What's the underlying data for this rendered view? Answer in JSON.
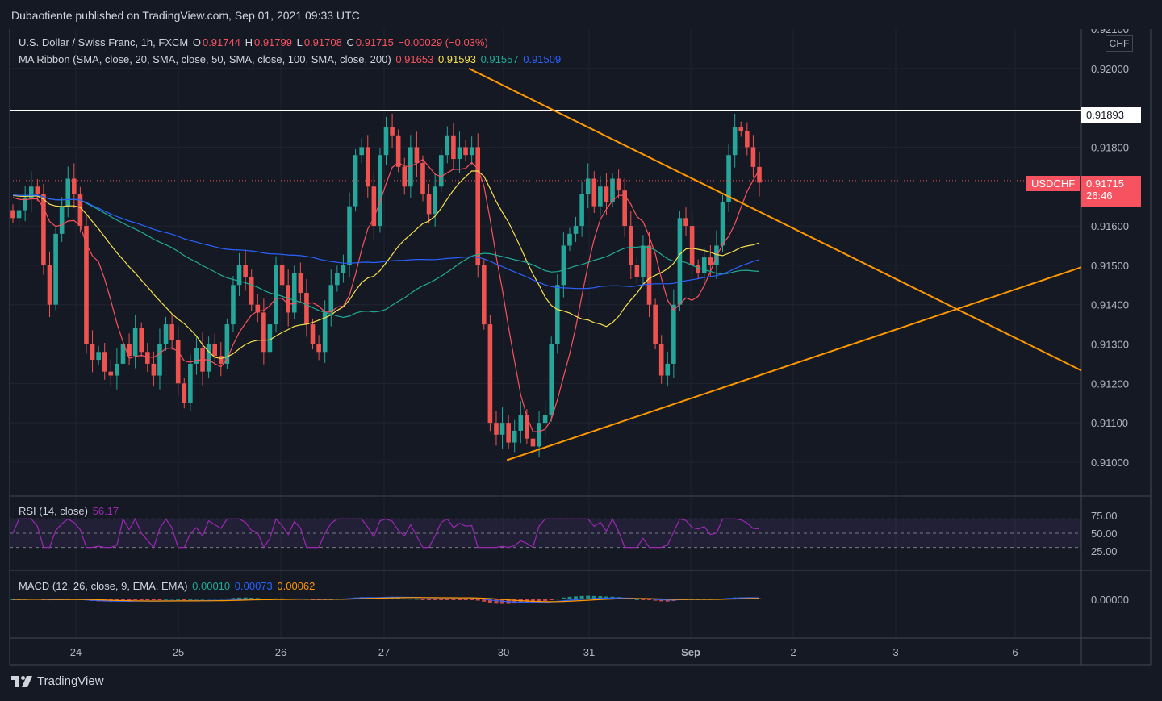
{
  "header": {
    "published": "Dubaotiente published on TradingView.com, Sep 01, 2021 09:33 UTC"
  },
  "legend": {
    "symbol": "U.S. Dollar / Swiss Franc, 1h, FXCM",
    "o_label": "O",
    "o_value": "0.91744",
    "h_label": "H",
    "h_value": "0.91799",
    "l_label": "L",
    "l_value": "0.91708",
    "c_label": "C",
    "c_value": "0.91715",
    "change": "−0.00029 (−0.03%)",
    "ma_title": "MA Ribbon (SMA, close, 20, SMA, close, 50, SMA, close, 100, SMA, close, 200)",
    "ma20": "0.91653",
    "ma50": "0.91593",
    "ma100": "0.91557",
    "ma200": "0.91509"
  },
  "rsi_legend": {
    "title": "RSI (14, close)",
    "value": "56.17"
  },
  "macd_legend": {
    "title": "MACD (12, 26, close, 9, EMA, EMA)",
    "hist": "0.00010",
    "macd": "0.00073",
    "signal": "0.00062"
  },
  "currency": "CHF",
  "price_tags": {
    "resistance": "0.91893",
    "symbol": "USDCHF",
    "last": "0.91715",
    "countdown": "26:46"
  },
  "footer": {
    "brand": "TradingView"
  },
  "colors": {
    "background": "#151924",
    "up": "#26a69a",
    "down": "#ef5350",
    "ma20": "#f7525f",
    "ma50": "#f7e14d",
    "ma100": "#22ab94",
    "ma200": "#2962ff",
    "trendline": "#ff9800",
    "rsi": "#9c27b0",
    "resistance": "#ffffff"
  },
  "chart_data": {
    "type": "candlestick",
    "symbol": "USDCHF",
    "timeframe": "1h",
    "x_ticks": [
      "24",
      "25",
      "26",
      "27",
      "30",
      "31",
      "Sep",
      "2",
      "3",
      "6"
    ],
    "y_ticks": [
      "0.92100",
      "0.92000",
      "0.91800",
      "0.91600",
      "0.91500",
      "0.91400",
      "0.91300",
      "0.91200",
      "0.91100",
      "0.91000"
    ],
    "y_tick_values": [
      0.921,
      0.92,
      0.918,
      0.916,
      0.915,
      0.914,
      0.913,
      0.912,
      0.911,
      0.91
    ],
    "ylim": [
      0.9092,
      0.921
    ],
    "resistance_level": 0.91893,
    "last_price": 0.91715,
    "close_series": [
      0.9162,
      0.9164,
      0.9167,
      0.917,
      0.9168,
      0.915,
      0.914,
      0.9158,
      0.9165,
      0.9172,
      0.9168,
      0.916,
      0.913,
      0.9126,
      0.9128,
      0.9123,
      0.9122,
      0.9125,
      0.913,
      0.9127,
      0.9134,
      0.9128,
      0.9125,
      0.9122,
      0.913,
      0.9135,
      0.9131,
      0.912,
      0.9115,
      0.9125,
      0.9129,
      0.9123,
      0.913,
      0.9127,
      0.9125,
      0.9135,
      0.9145,
      0.915,
      0.9147,
      0.914,
      0.9138,
      0.9128,
      0.9135,
      0.915,
      0.9145,
      0.9138,
      0.9148,
      0.9143,
      0.9135,
      0.913,
      0.9128,
      0.9138,
      0.9145,
      0.9148,
      0.915,
      0.9165,
      0.9178,
      0.918,
      0.917,
      0.916,
      0.9178,
      0.9185,
      0.9183,
      0.9175,
      0.917,
      0.918,
      0.9176,
      0.9168,
      0.9163,
      0.917,
      0.9178,
      0.9183,
      0.9177,
      0.918,
      0.9178,
      0.918,
      0.915,
      0.9135,
      0.911,
      0.9107,
      0.911,
      0.9105,
      0.9108,
      0.9112,
      0.9106,
      0.9104,
      0.911,
      0.9112,
      0.913,
      0.9145,
      0.9155,
      0.9158,
      0.916,
      0.9168,
      0.9172,
      0.9165,
      0.917,
      0.9166,
      0.9172,
      0.9169,
      0.916,
      0.915,
      0.9147,
      0.9155,
      0.914,
      0.913,
      0.9122,
      0.9125,
      0.914,
      0.9162,
      0.916,
      0.915,
      0.9148,
      0.9152,
      0.915,
      0.9155,
      0.9166,
      0.9178,
      0.9185,
      0.9184,
      0.918,
      0.9175,
      0.9171
    ],
    "ma20": "0.91653",
    "ma50": "0.91593",
    "ma100": "0.91557",
    "ma200": "0.91509",
    "rsi": {
      "ylim": [
        0,
        100
      ],
      "ticks": [
        "75.00",
        "50.00",
        "25.00"
      ],
      "tick_values": [
        75,
        50,
        25
      ],
      "last": 56.17
    },
    "macd": {
      "ticks": [
        "0.00000"
      ],
      "tick_values": [
        0
      ],
      "hist": 0.0001,
      "macd": 0.00073,
      "signal": 0.00062
    }
  }
}
